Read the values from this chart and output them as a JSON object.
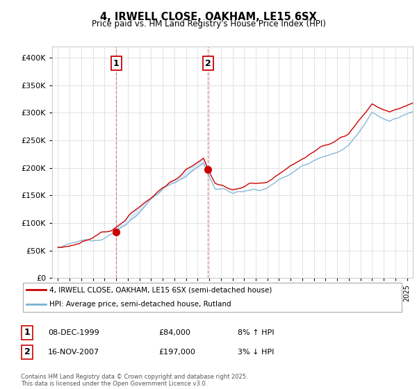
{
  "title": "4, IRWELL CLOSE, OAKHAM, LE15 6SX",
  "subtitle": "Price paid vs. HM Land Registry's House Price Index (HPI)",
  "legend_line1": "4, IRWELL CLOSE, OAKHAM, LE15 6SX (semi-detached house)",
  "legend_line2": "HPI: Average price, semi-detached house, Rutland",
  "footnote": "Contains HM Land Registry data © Crown copyright and database right 2025.\nThis data is licensed under the Open Government Licence v3.0.",
  "sale1_label": "1",
  "sale1_date": "08-DEC-1999",
  "sale1_price": "£84,000",
  "sale1_hpi": "8% ↑ HPI",
  "sale2_label": "2",
  "sale2_date": "16-NOV-2007",
  "sale2_price": "£197,000",
  "sale2_hpi": "3% ↓ HPI",
  "sale1_year": 2000.0,
  "sale1_value": 84000,
  "sale2_year": 2007.88,
  "sale2_value": 197000,
  "vline1_x": 2000.0,
  "vline2_x": 2007.88,
  "red_color": "#cc0000",
  "blue_color": "#7ab0d4",
  "fill_color": "#ddeaf7",
  "vline_color": "#cc6666",
  "ylim": [
    0,
    420000
  ],
  "yticks": [
    0,
    50000,
    100000,
    150000,
    200000,
    250000,
    300000,
    350000,
    400000
  ],
  "xlim": [
    1994.5,
    2025.5
  ],
  "background_color": "#ffffff"
}
